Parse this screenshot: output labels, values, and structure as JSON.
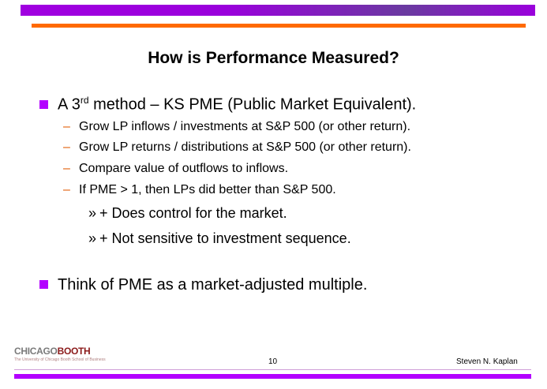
{
  "slide": {
    "title": "How is Performance Measured?",
    "bullets": [
      {
        "text_before_sup": "A 3",
        "sup": "rd",
        "text_after_sup": " method – KS PME (Public Market Equivalent).",
        "sub_items": [
          {
            "marker": "–",
            "text": "Grow LP inflows / investments at S&P 500 (or other return)."
          },
          {
            "marker": "–",
            "text": "Grow LP returns / distributions at S&P 500 (or other return)."
          },
          {
            "marker": "–",
            "text": "Compare value of outflows to inflows."
          },
          {
            "marker": "–",
            "text": "If PME > 1, then LPs did better than S&P 500.",
            "sub_items": [
              {
                "marker": "»",
                "text": "+ Does control for the market."
              },
              {
                "marker": "»",
                "text": "+ Not sensitive to investment sequence."
              }
            ]
          }
        ]
      },
      {
        "text": "Think of PME as a market-adjusted multiple."
      }
    ]
  },
  "footer": {
    "logo": {
      "part1": "CHICAGO",
      "part2": "BOOTH",
      "subtitle": "The University of Chicago Booth School of Business"
    },
    "page_number": "10",
    "author": "Steven N.  Kaplan"
  },
  "colors": {
    "top_bar": "#a000e0",
    "accent_orange": "#ff6a00",
    "bullet_purple": "#b300ff",
    "dash_orange": "#e05a00"
  }
}
